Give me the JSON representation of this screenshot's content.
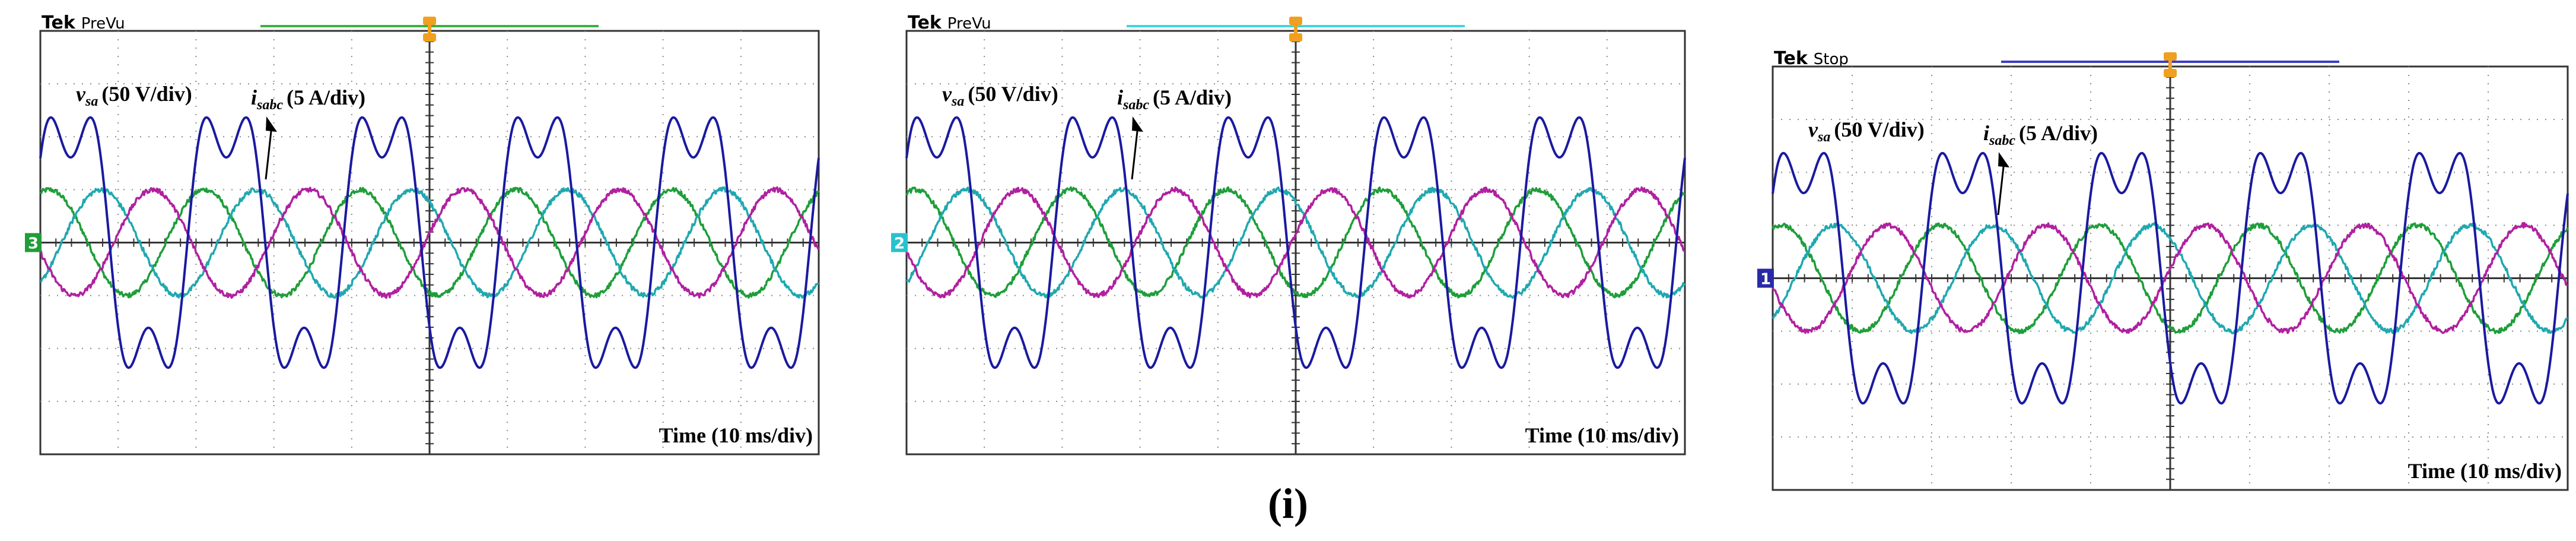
{
  "figure": {
    "caption": "(i)"
  },
  "chart_data": [
    {
      "type": "line",
      "status_brand": "Tek",
      "status_mode": "PreVu",
      "voltage_label": {
        "symbol": "v",
        "subscript": "sa",
        "scale": "(50 V/div)"
      },
      "current_label": {
        "symbol": "i",
        "subscript": "sabc",
        "scale": "(5 A/div)"
      },
      "xlabel": "Time (10 ms/div)",
      "channel_marker": "3",
      "colors": {
        "record_bar": "#3cb043",
        "channel_marker": "#1e9e3a"
      },
      "divisions": {
        "x": 10,
        "y": 8
      },
      "xlim": [
        0,
        100
      ],
      "ylim": [
        -4,
        4
      ],
      "fundamental_period_ms": 20,
      "series": [
        {
          "color": "#1a1aa0",
          "amplitude_div": 2.6,
          "phase_deg": 20,
          "waveform": "distorted-voltage"
        },
        {
          "color": "#1e9e3a",
          "amplitude_div": 1.0,
          "phase_deg": 70,
          "waveform": "sine"
        },
        {
          "color": "#20a8b0",
          "amplitude_div": 1.0,
          "phase_deg": -50,
          "waveform": "sine"
        },
        {
          "color": "#b020a0",
          "amplitude_div": 1.0,
          "phase_deg": 190,
          "waveform": "sine"
        }
      ]
    },
    {
      "type": "line",
      "status_brand": "Tek",
      "status_mode": "PreVu",
      "voltage_label": {
        "symbol": "v",
        "subscript": "sa",
        "scale": "(50 V/div)"
      },
      "current_label": {
        "symbol": "i",
        "subscript": "sabc",
        "scale": "(5 A/div)"
      },
      "xlabel": "Time (10 ms/div)",
      "channel_marker": "2",
      "colors": {
        "record_bar": "#3fd6e0",
        "channel_marker": "#27c2cc"
      },
      "divisions": {
        "x": 10,
        "y": 8
      },
      "xlim": [
        0,
        100
      ],
      "ylim": [
        -4,
        4
      ],
      "fundamental_period_ms": 20,
      "series": [
        {
          "color": "#1a1aa0",
          "amplitude_div": 2.6,
          "phase_deg": 20,
          "waveform": "distorted-voltage"
        },
        {
          "color": "#1e9e3a",
          "amplitude_div": 1.0,
          "phase_deg": 70,
          "waveform": "sine"
        },
        {
          "color": "#20a8b0",
          "amplitude_div": 1.0,
          "phase_deg": -50,
          "waveform": "sine"
        },
        {
          "color": "#b020a0",
          "amplitude_div": 1.0,
          "phase_deg": 190,
          "waveform": "sine"
        }
      ]
    },
    {
      "type": "line",
      "status_brand": "Tek",
      "status_mode": "Stop",
      "voltage_label": {
        "symbol": "v",
        "subscript": "sa",
        "scale": "(50 V/div)"
      },
      "current_label": {
        "symbol": "i",
        "subscript": "sabc",
        "scale": "(5 A/div)"
      },
      "xlabel": "Time (10 ms/div)",
      "channel_marker": "1",
      "colors": {
        "record_bar": "#3d3dc8",
        "channel_marker": "#2a2aa8"
      },
      "divisions": {
        "x": 10,
        "y": 8
      },
      "xlim": [
        0,
        100
      ],
      "ylim": [
        -4,
        4
      ],
      "fundamental_period_ms": 20,
      "series": [
        {
          "color": "#1a1aa0",
          "amplitude_div": 2.6,
          "phase_deg": 20,
          "waveform": "distorted-voltage"
        },
        {
          "color": "#1e9e3a",
          "amplitude_div": 1.0,
          "phase_deg": 70,
          "waveform": "sine"
        },
        {
          "color": "#20a8b0",
          "amplitude_div": 1.0,
          "phase_deg": -50,
          "waveform": "sine"
        },
        {
          "color": "#b020a0",
          "amplitude_div": 1.0,
          "phase_deg": 190,
          "waveform": "sine"
        }
      ]
    }
  ]
}
